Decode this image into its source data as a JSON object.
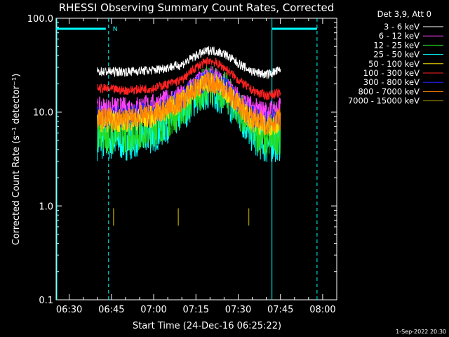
{
  "chart_data": {
    "type": "line",
    "title": "RHESSI Observing Summary Count Rates, Corrected",
    "xlabel": "Start Time (24-Dec-16 06:25:22)",
    "ylabel": "Corrected Count Rate (s⁻¹ detector⁻¹)",
    "yscale": "log",
    "ylim": [
      0.1,
      100
    ],
    "yticks": [
      "0.1",
      "1.0",
      "10.0",
      "100.0"
    ],
    "xlim": [
      "06:25:22",
      "08:05:00"
    ],
    "xticks": [
      "06:30",
      "06:45",
      "07:00",
      "07:15",
      "07:30",
      "07:45",
      "08:00"
    ],
    "legend_title": "Det 3,9, Att 0",
    "legend_position": "right",
    "time_marks": {
      "night_start": "06:25:22",
      "night_end": "06:44:00",
      "night_label": "N",
      "day_end": "07:42:00",
      "night2_end": "07:58:00"
    },
    "series": [
      {
        "name": "3 - 6 keV",
        "color": "#ffffff",
        "times": [
          "06:40",
          "06:50",
          "07:00",
          "07:10",
          "07:15",
          "07:20",
          "07:25",
          "07:30",
          "07:35",
          "07:40",
          "07:45"
        ],
        "values": [
          27,
          27,
          28,
          32,
          40,
          46,
          42,
          33,
          27,
          25,
          28
        ]
      },
      {
        "name": "6 - 12 keV",
        "color": "#ff44ff",
        "times": [
          "06:40",
          "06:50",
          "07:00",
          "07:10",
          "07:15",
          "07:20",
          "07:25",
          "07:30",
          "07:35",
          "07:40",
          "07:45"
        ],
        "values": [
          11,
          11,
          12,
          15,
          20,
          24,
          20,
          14,
          11,
          10,
          11
        ]
      },
      {
        "name": "12 - 25 keV",
        "color": "#22dd22",
        "times": [
          "06:40",
          "06:50",
          "07:00",
          "07:10",
          "07:15",
          "07:20",
          "07:25",
          "07:30",
          "07:35",
          "07:40",
          "07:45"
        ],
        "values": [
          6,
          6,
          7,
          11,
          16,
          20,
          17,
          11,
          7,
          5,
          6
        ]
      },
      {
        "name": "25 - 50 keV",
        "color": "#00ffff",
        "times": [
          "06:40",
          "06:50",
          "07:00",
          "07:10",
          "07:15",
          "07:20",
          "07:25",
          "07:30",
          "07:35",
          "07:40",
          "07:45"
        ],
        "values": [
          5,
          5,
          6,
          10,
          15,
          18,
          15,
          10,
          6,
          4.5,
          5
        ]
      },
      {
        "name": "50 - 100 keV",
        "color": "#ffdd00",
        "times": [
          "06:40",
          "06:50",
          "07:00",
          "07:10",
          "07:15",
          "07:20",
          "07:25",
          "07:30",
          "07:35",
          "07:40",
          "07:45"
        ],
        "values": [
          8,
          8,
          9,
          13,
          18,
          21,
          18,
          12,
          8,
          7,
          8
        ]
      },
      {
        "name": "100 - 300 keV",
        "color": "#ff2222",
        "times": [
          "06:40",
          "06:50",
          "07:00",
          "07:10",
          "07:15",
          "07:20",
          "07:25",
          "07:30",
          "07:35",
          "07:40",
          "07:45"
        ],
        "values": [
          18,
          17,
          18,
          22,
          30,
          36,
          30,
          22,
          17,
          15,
          16
        ]
      },
      {
        "name": "300 - 800 keV",
        "color": "#2222ff",
        "times": [
          "06:40",
          "06:50",
          "07:00",
          "07:10",
          "07:15",
          "07:20",
          "07:25",
          "07:30",
          "07:35",
          "07:40",
          "07:45"
        ],
        "values": [
          9,
          9,
          10,
          14,
          19,
          22,
          19,
          13,
          9,
          8,
          9
        ]
      },
      {
        "name": "800 - 7000 keV",
        "color": "#ff8800",
        "times": [
          "06:40",
          "06:50",
          "07:00",
          "07:10",
          "07:15",
          "07:20",
          "07:25",
          "07:30",
          "07:35",
          "07:40",
          "07:45"
        ],
        "values": [
          8.5,
          8.5,
          9.5,
          13,
          18,
          21,
          18,
          12,
          8.5,
          7.5,
          8.5
        ]
      },
      {
        "name": "7000 - 15000 keV",
        "color": "#998800",
        "times": [
          "06:45",
          "07:08",
          "07:33"
        ],
        "values": [
          0.7,
          0.7,
          0.7
        ],
        "style": "spikes"
      }
    ],
    "timestamp": "1-Sep-2022 20:30"
  }
}
